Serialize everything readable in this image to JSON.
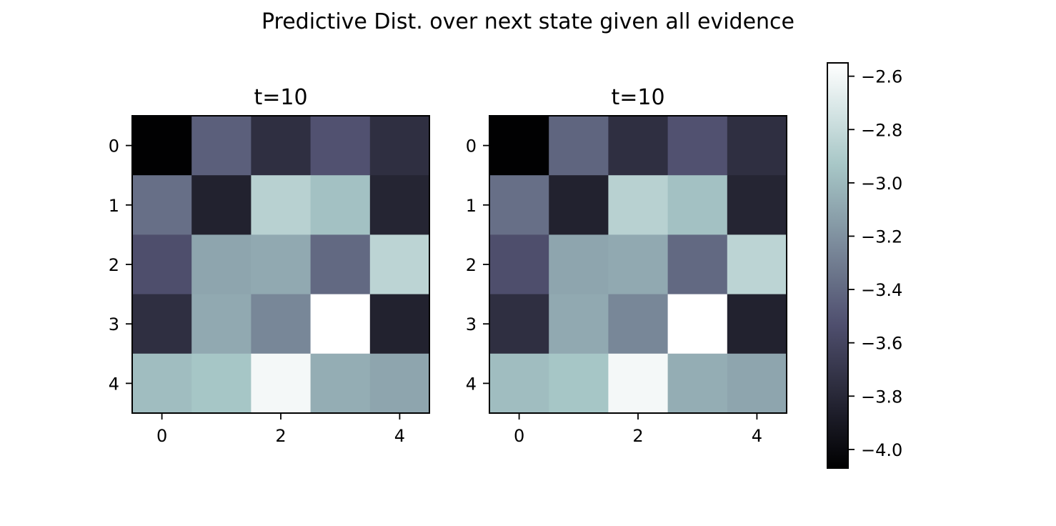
{
  "figure": {
    "title": "Predictive Dist. over next state given all evidence"
  },
  "chart_data": [
    {
      "type": "heatmap",
      "title": "t=10",
      "x_ticks": [
        0,
        2,
        4
      ],
      "y_ticks": [
        0,
        1,
        2,
        3,
        4
      ],
      "values": [
        [
          -4.06,
          -3.45,
          -3.75,
          -3.52,
          -3.75
        ],
        [
          -3.37,
          -3.84,
          -2.86,
          -2.96,
          -3.82
        ],
        [
          -3.54,
          -3.1,
          -3.08,
          -3.4,
          -2.84
        ],
        [
          -3.75,
          -3.08,
          -3.25,
          -2.55,
          -3.84
        ],
        [
          -2.98,
          -2.94,
          -2.6,
          -3.06,
          -3.1
        ]
      ]
    },
    {
      "type": "heatmap",
      "title": "t=10",
      "x_ticks": [
        0,
        2,
        4
      ],
      "y_ticks": [
        0,
        1,
        2,
        3,
        4
      ],
      "values": [
        [
          -4.06,
          -3.42,
          -3.75,
          -3.52,
          -3.75
        ],
        [
          -3.37,
          -3.84,
          -2.86,
          -2.96,
          -3.82
        ],
        [
          -3.54,
          -3.1,
          -3.08,
          -3.4,
          -2.84
        ],
        [
          -3.75,
          -3.08,
          -3.25,
          -2.55,
          -3.84
        ],
        [
          -2.98,
          -2.94,
          -2.6,
          -3.06,
          -3.1
        ]
      ]
    }
  ],
  "colorbar": {
    "colormap": "bone",
    "vmin": -4.07,
    "vmax": -2.55,
    "ticks": [
      -2.6,
      -2.8,
      -3.0,
      -3.2,
      -3.4,
      -3.6,
      -3.8,
      -4.0
    ],
    "tick_labels": [
      "−2.6",
      "−2.8",
      "−3.0",
      "−3.2",
      "−3.4",
      "−3.6",
      "−3.8",
      "−4.0"
    ]
  }
}
